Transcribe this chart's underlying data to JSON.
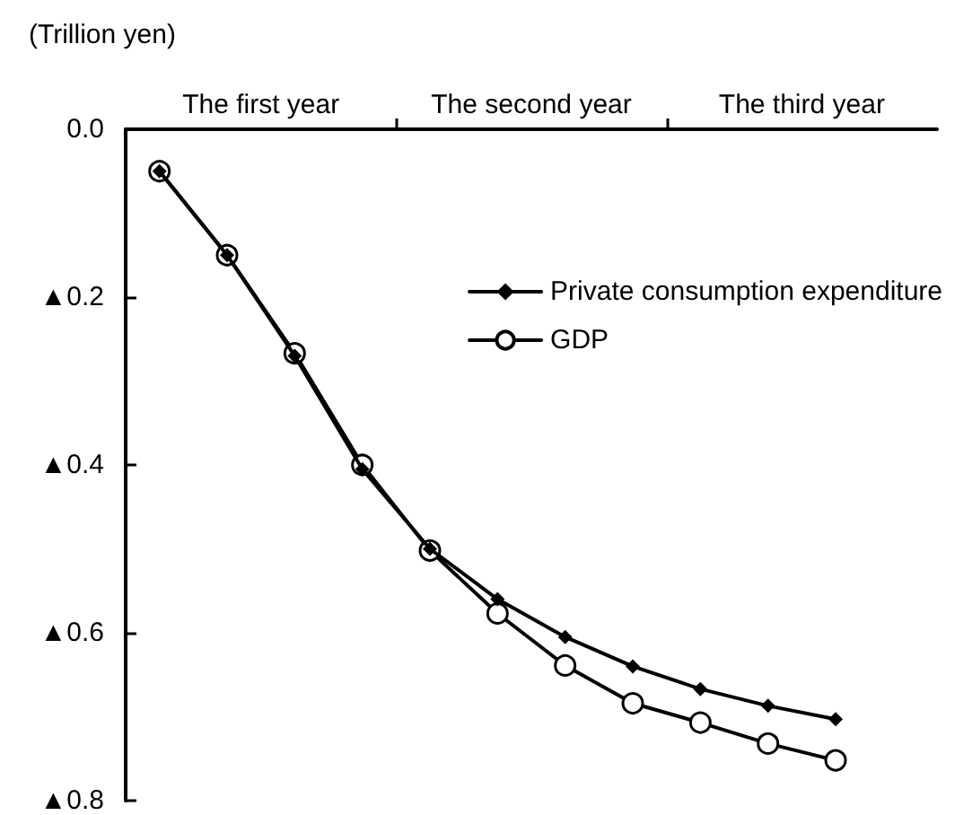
{
  "chart_data": {
    "type": "line",
    "ylabel": "(Trillion yen)",
    "categories": [
      null,
      null,
      null,
      null,
      null,
      null,
      null,
      null,
      null,
      null,
      null,
      null
    ],
    "annotations": [
      "The first year",
      "The second year",
      "The third year"
    ],
    "ylim": [
      -0.8,
      0
    ],
    "yticks": [
      {
        "value": 0,
        "label": "0.0"
      },
      {
        "value": -0.2,
        "label": "▲0.2"
      },
      {
        "value": -0.4,
        "label": "▲0.4"
      },
      {
        "value": -0.6,
        "label": "▲0.6"
      },
      {
        "value": -0.8,
        "label": "▲0.8"
      }
    ],
    "series": [
      {
        "name": "Private consumption expenditure",
        "color": "#000000",
        "marker": "diamond",
        "values": [
          -0.05,
          -0.15,
          -0.27,
          -0.405,
          -0.5,
          -0.56,
          -0.605,
          -0.64,
          -0.667,
          -0.687,
          -0.703,
          null
        ]
      },
      {
        "name": "GDP",
        "color": "#000000",
        "marker": "circle",
        "values": [
          -0.05,
          -0.15,
          -0.267,
          -0.4,
          -0.502,
          -0.577,
          -0.639,
          -0.684,
          -0.707,
          -0.732,
          -0.752,
          null
        ]
      }
    ],
    "grid": false,
    "legend": "top right",
    "line_style": "solid"
  }
}
